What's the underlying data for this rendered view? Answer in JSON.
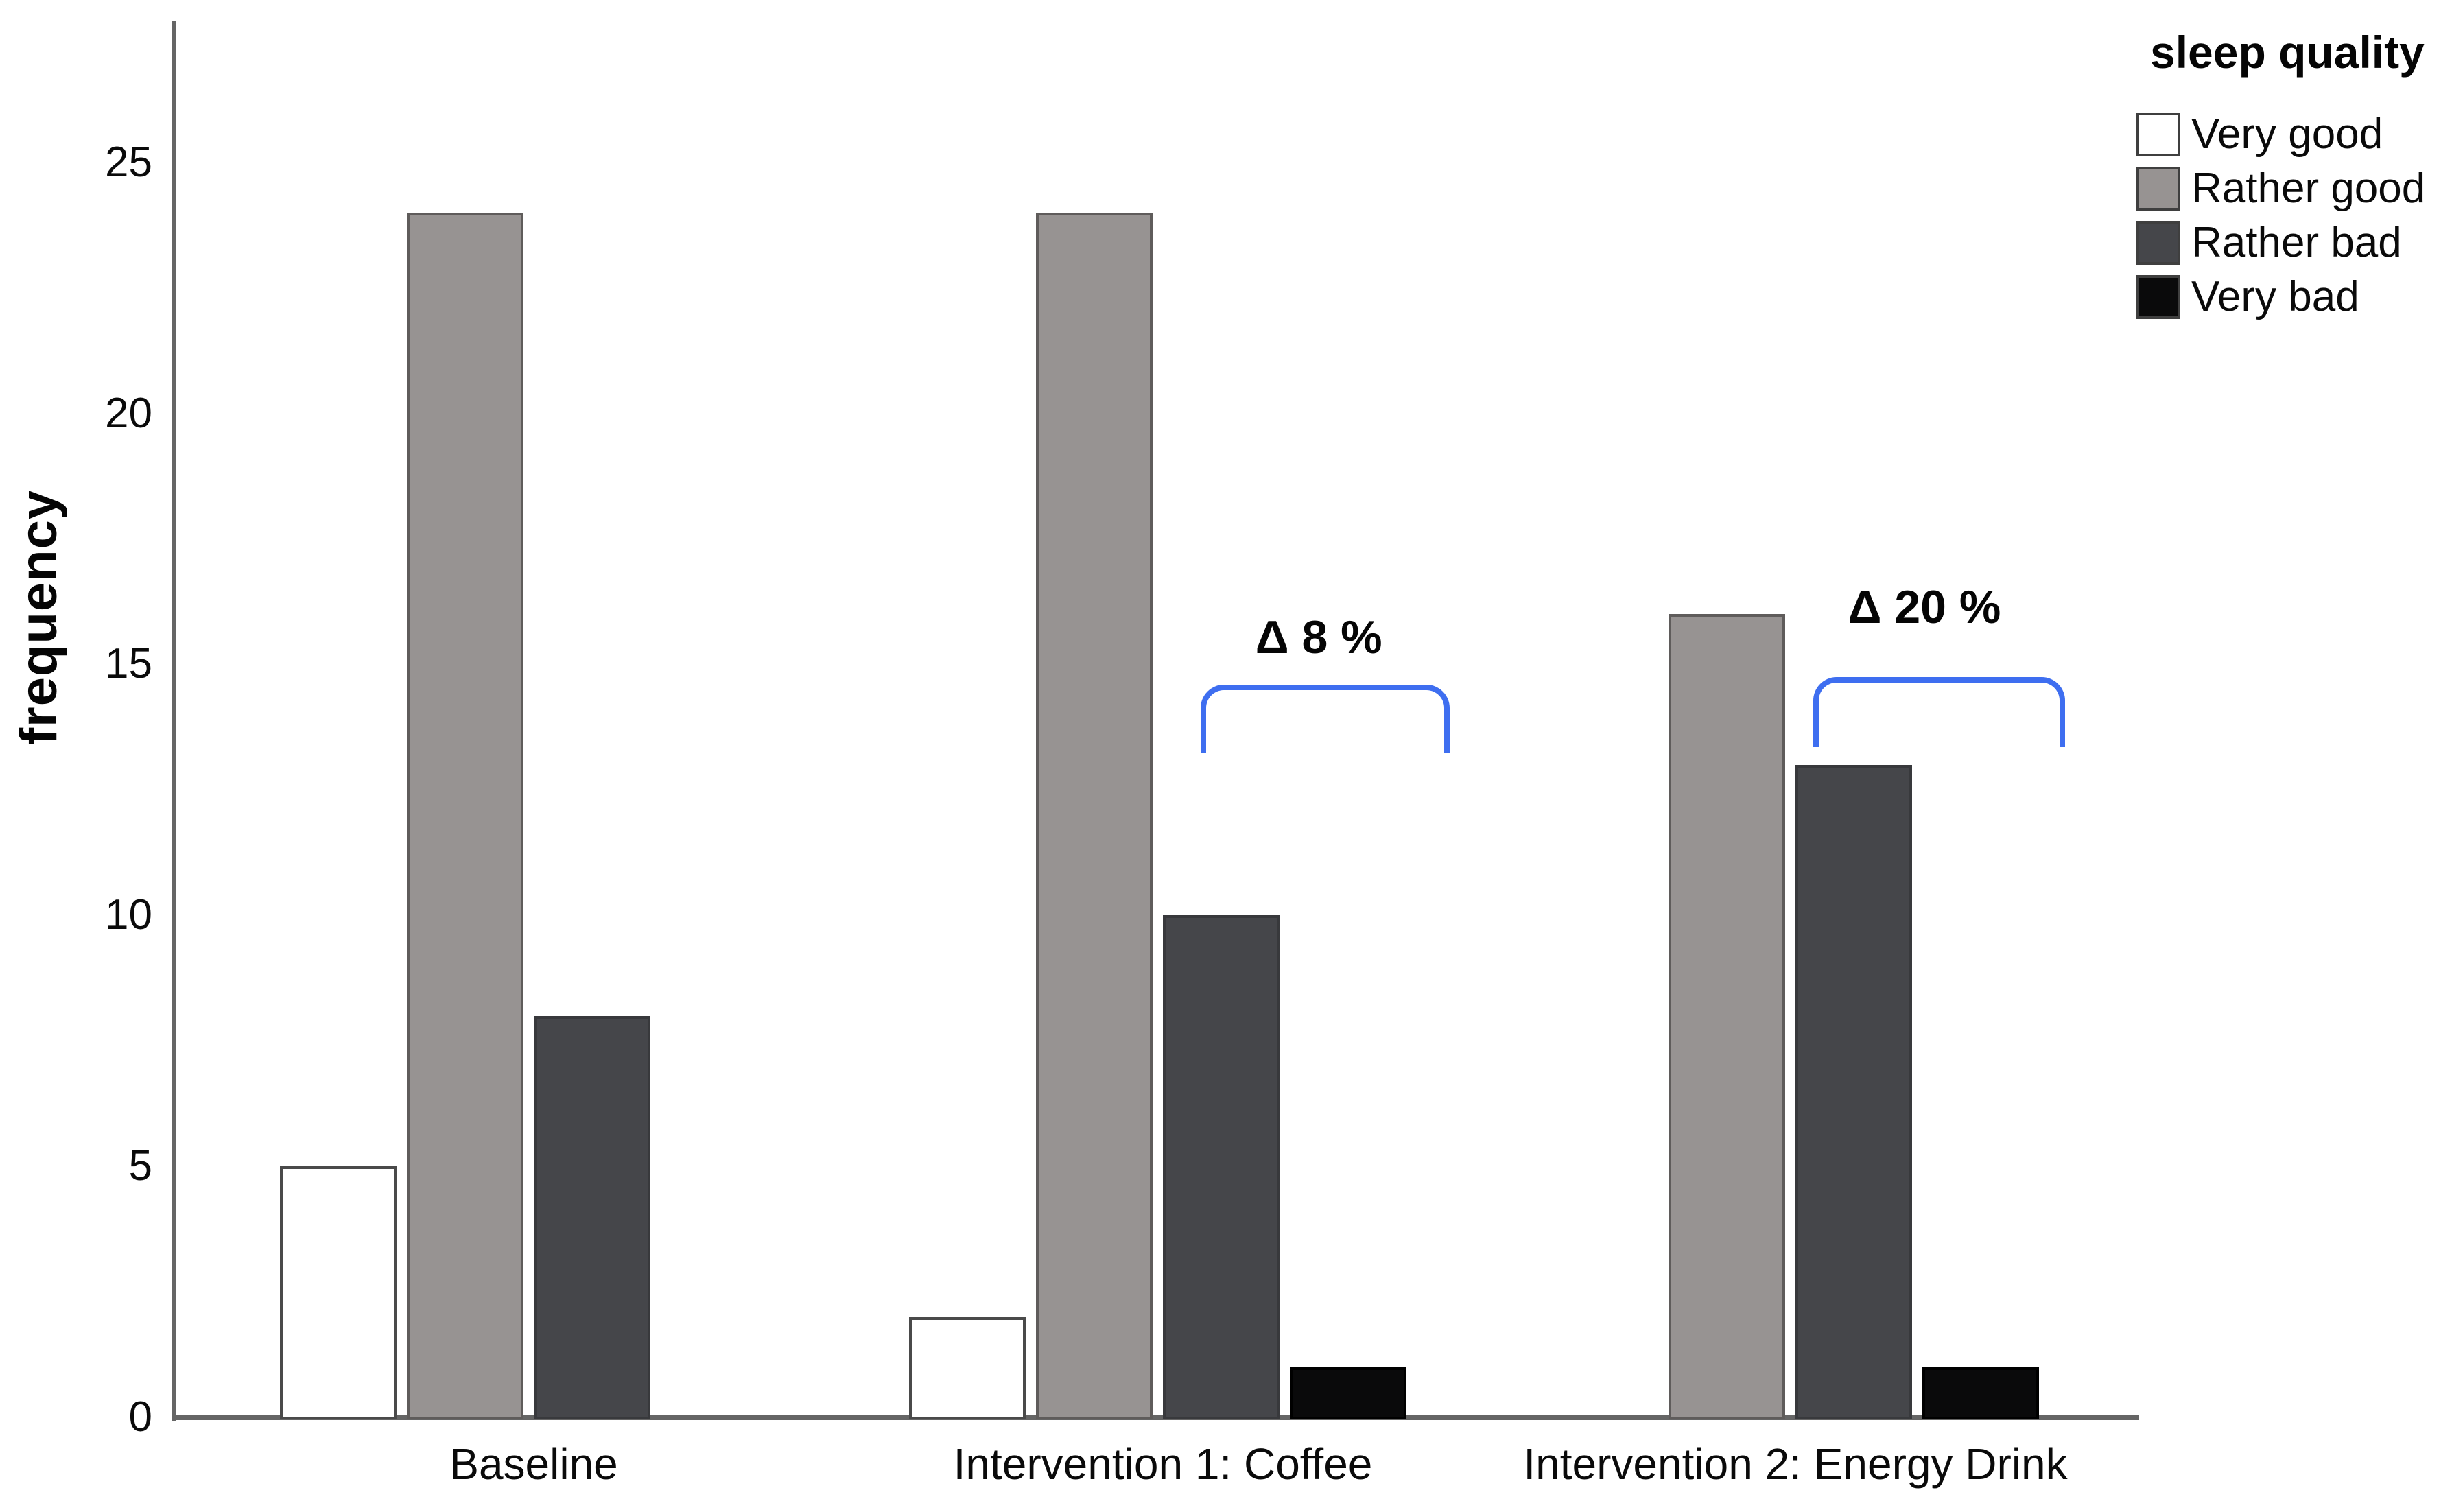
{
  "chart_data": {
    "type": "bar",
    "title": "",
    "xlabel": "",
    "ylabel": "frequency",
    "categories": [
      "Baseline",
      "Intervention 1: Coffee",
      "Intervention 2: Energy Drink"
    ],
    "series": [
      {
        "name": "Very good",
        "values": [
          5,
          2,
          0
        ],
        "fill": "#ffffff",
        "stroke": "#4a4a4a"
      },
      {
        "name": "Rather good",
        "values": [
          24,
          24,
          16
        ],
        "fill": "#979392",
        "stroke": "#5f5c5b"
      },
      {
        "name": "Rather bad",
        "values": [
          8,
          10,
          13
        ],
        "fill": "#45464a",
        "stroke": "#38393c"
      },
      {
        "name": "Very bad",
        "values": [
          0,
          1,
          1
        ],
        "fill": "#0a0a0b",
        "stroke": "#000000"
      }
    ],
    "yticks": [
      0,
      5,
      10,
      15,
      20,
      25
    ],
    "ylim": [
      0,
      27.8
    ],
    "grid": false,
    "legend": {
      "title": "sleep quality",
      "position": "top-right"
    },
    "annotations": [
      {
        "text": "Δ 8 %",
        "group_index": 1,
        "color": "#3e6ef0",
        "bracket": {
          "x_from_frac": 0.574,
          "x_to_frac": 1.065,
          "y_top": 14.6,
          "y_ends": 13.23
        },
        "label_pos": {
          "x_frac": 0.807,
          "y": 15.5
        }
      },
      {
        "text": "Δ 20 %",
        "group_index": 2,
        "color": "#3e6ef0",
        "bracket": {
          "x_from_frac": 0.535,
          "x_to_frac": 1.031,
          "y_top": 14.75,
          "y_ends": 13.35
        },
        "label_pos": {
          "x_frac": 0.754,
          "y": 16.1
        }
      }
    ],
    "axis_color": "#656565",
    "text_color": "#0a0a0a"
  }
}
